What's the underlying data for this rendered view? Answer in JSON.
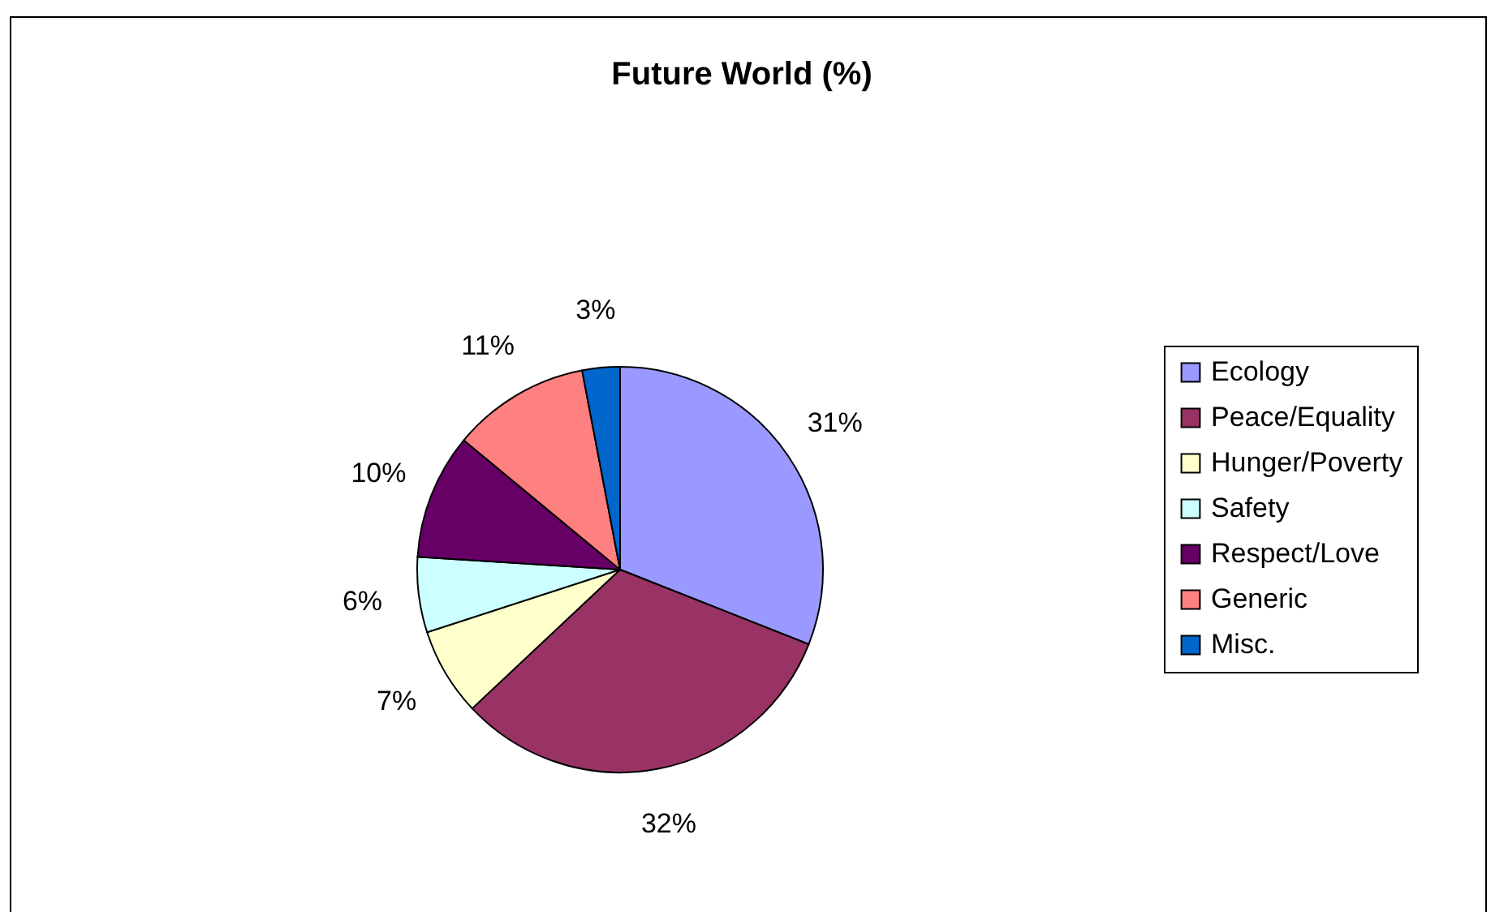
{
  "chart_data": {
    "type": "pie",
    "title": "Future World (%)",
    "categories": [
      "Ecology",
      "Peace/Equality",
      "Hunger/Poverty",
      "Safety",
      "Respect/Love",
      "Generic",
      "Misc."
    ],
    "values": [
      31,
      32,
      7,
      6,
      10,
      11,
      3
    ],
    "value_labels": [
      "31%",
      "32%",
      "7%",
      "6%",
      "10%",
      "11%",
      "3%"
    ],
    "colors": [
      "#9999ff",
      "#993366",
      "#ffffcc",
      "#ccffff",
      "#660066",
      "#ff8080",
      "#0066cc"
    ],
    "legend": "right"
  }
}
